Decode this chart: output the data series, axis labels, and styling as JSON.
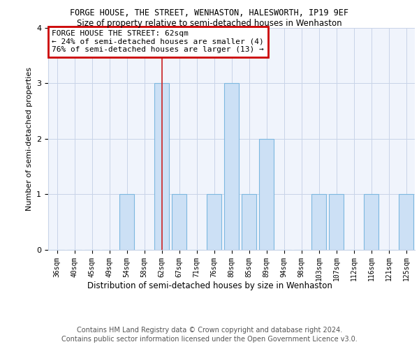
{
  "title1": "FORGE HOUSE, THE STREET, WENHASTON, HALESWORTH, IP19 9EF",
  "title2": "Size of property relative to semi-detached houses in Wenhaston",
  "xlabel": "Distribution of semi-detached houses by size in Wenhaston",
  "ylabel": "Number of semi-detached properties",
  "categories": [
    "36sqm",
    "40sqm",
    "45sqm",
    "49sqm",
    "54sqm",
    "58sqm",
    "62sqm",
    "67sqm",
    "71sqm",
    "76sqm",
    "80sqm",
    "85sqm",
    "89sqm",
    "94sqm",
    "98sqm",
    "103sqm",
    "107sqm",
    "112sqm",
    "116sqm",
    "121sqm",
    "125sqm"
  ],
  "values": [
    0,
    0,
    0,
    0,
    1,
    0,
    3,
    1,
    0,
    1,
    3,
    1,
    2,
    0,
    0,
    1,
    1,
    0,
    1,
    0,
    1
  ],
  "highlight_index": 6,
  "bar_color": "#cce0f5",
  "bar_edge_color": "#7db8e0",
  "annotation_box_edge": "#cc0000",
  "annotation_line1": "FORGE HOUSE THE STREET: 62sqm",
  "annotation_line2": "← 24% of semi-detached houses are smaller (4)",
  "annotation_line3": "76% of semi-detached houses are larger (13) →",
  "footer1": "Contains HM Land Registry data © Crown copyright and database right 2024.",
  "footer2": "Contains public sector information licensed under the Open Government Licence v3.0.",
  "ylim": [
    0,
    4
  ],
  "yticks": [
    0,
    1,
    2,
    3,
    4
  ],
  "bg_color": "#f0f4fc",
  "grid_color": "#c8d4e8",
  "vline_color": "#cc2222"
}
